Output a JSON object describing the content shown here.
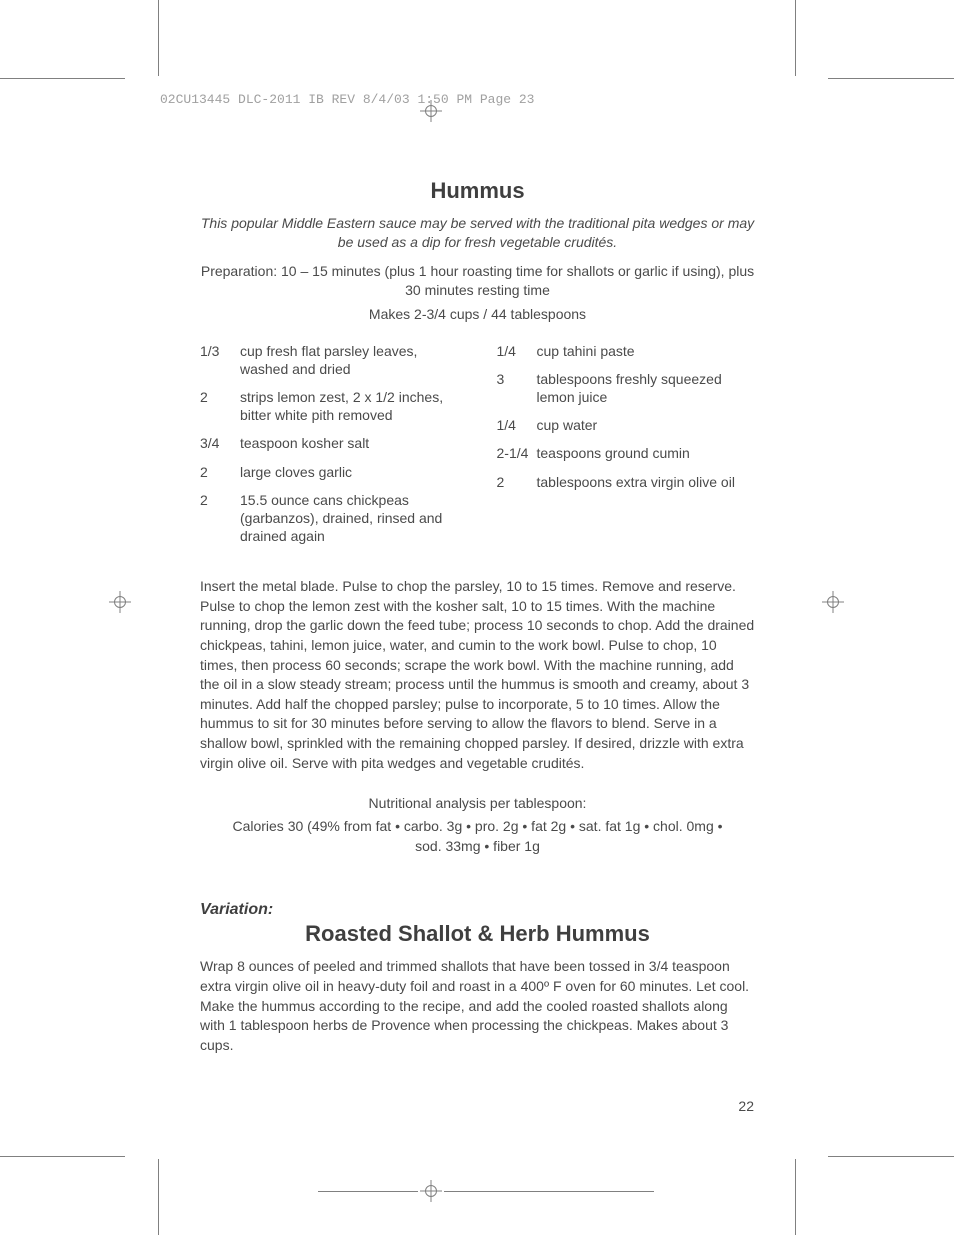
{
  "slug": "02CU13445 DLC-2011 IB REV  8/4/03  1:50 PM  Page 23",
  "title1": "Hummus",
  "blurb": "This popular Middle Eastern sauce may be served with the traditional pita wedges or may be used as a dip for fresh vegetable crudités.",
  "prep": "Preparation: 10 – 15 minutes (plus 1 hour roasting time for shallots or garlic if using), plus 30 minutes resting time",
  "makes": "Makes 2-3/4 cups / 44 tablespoons",
  "ingredients_left": [
    {
      "qty": "1/3",
      "desc": "cup fresh flat parsley leaves, washed and dried"
    },
    {
      "qty": "2",
      "desc": "strips lemon zest, 2 x 1/2 inches, bitter white pith removed"
    },
    {
      "qty": "3/4",
      "desc": "teaspoon kosher salt"
    },
    {
      "qty": "2",
      "desc": "large cloves garlic"
    },
    {
      "qty": "2",
      "desc": "15.5 ounce cans chickpeas (garbanzos), drained, rinsed and drained again"
    }
  ],
  "ingredients_right": [
    {
      "qty": "1/4",
      "desc": "cup tahini paste"
    },
    {
      "qty": "3",
      "desc": "tablespoons freshly squeezed lemon juice"
    },
    {
      "qty": "1/4",
      "desc": "cup water"
    },
    {
      "qty": "2-1/4",
      "desc": "teaspoons ground cumin"
    },
    {
      "qty": "2",
      "desc": "tablespoons extra virgin olive oil"
    }
  ],
  "body": "Insert the metal blade. Pulse to chop the parsley, 10 to 15 times. Remove and reserve. Pulse to chop the lemon zest with the kosher salt, 10 to 15 times. With the machine running, drop the garlic down the feed tube; process 10 seconds to chop. Add the drained chickpeas, tahini, lemon juice, water, and cumin to the work bowl. Pulse to chop, 10 times, then process 60 seconds; scrape the work bowl. With the machine running, add the oil in a slow steady stream; process until the hummus is smooth and creamy, about 3 minutes. Add half the chopped parsley; pulse to incorporate, 5 to 10 times. Allow the hummus to sit for 30 minutes before serving to allow the flavors to blend. Serve in a shallow bowl, sprinkled with the remaining chopped parsley. If desired, drizzle with extra virgin olive oil. Serve with pita wedges and vegetable crudités.",
  "nutri_head": "Nutritional analysis per tablespoon:",
  "nutri_body": "Calories 30 (49% from fat • carbo. 3g • pro. 2g • fat 2g • sat. fat 1g • chol. 0mg • sod. 33mg • fiber 1g",
  "variation_label": "Variation:",
  "title2": "Roasted Shallot & Herb Hummus",
  "body2": "Wrap 8 ounces of peeled and trimmed shallots that have been tossed in 3/4 teaspoon extra virgin olive oil in heavy-duty foil and roast in a 400º F oven for 60 minutes. Let cool. Make the hummus according to the recipe, and add the cooled roasted shallots along with 1 tablespoon herbs de Provence when processing the chickpeas. Makes about 3 cups.",
  "page_num": "22",
  "colors": {
    "text": "#4a4a4a",
    "heading": "#3f3f3f",
    "slug": "#a0a0a0",
    "marks": "#808080"
  }
}
